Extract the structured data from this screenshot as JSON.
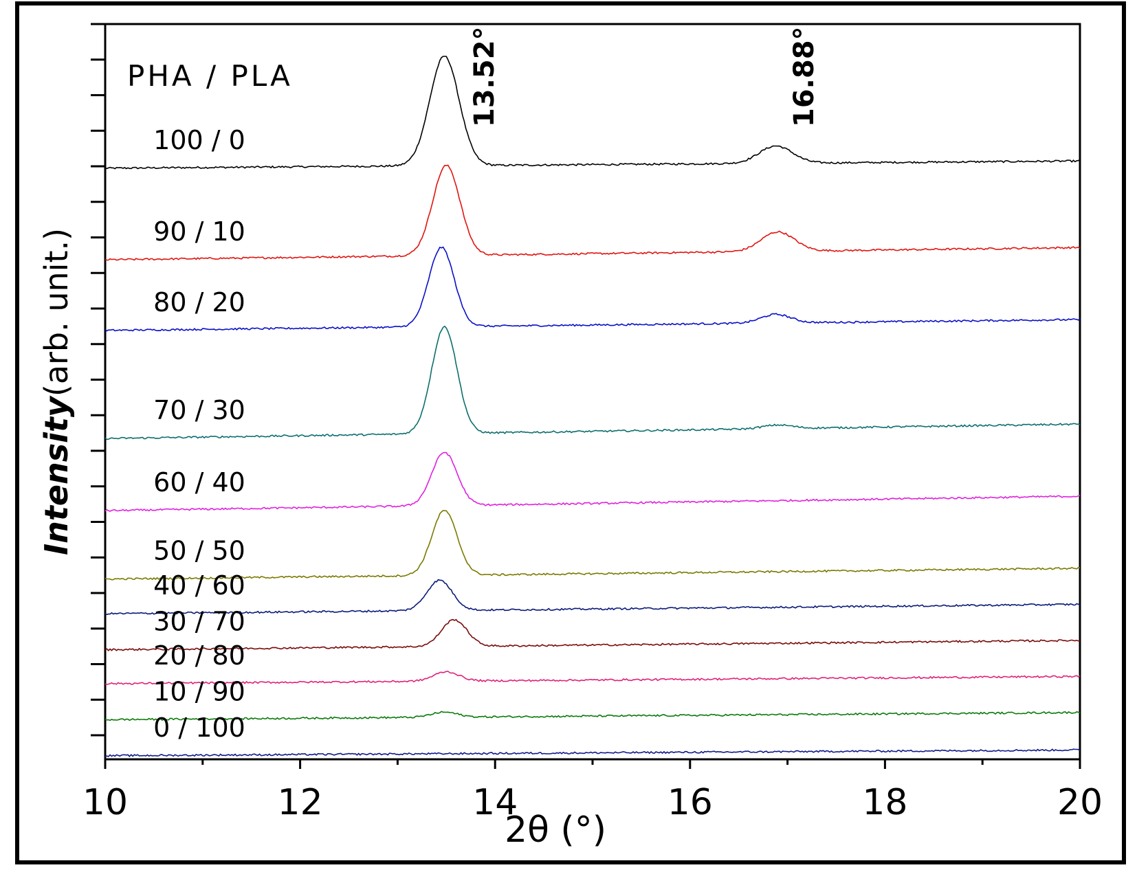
{
  "chart_data": {
    "type": "line",
    "title": "",
    "xlabel": "2θ (°)",
    "ylabel": {
      "italic": "Intensity",
      "rest": "(arb. unit.)"
    },
    "xlim": [
      10,
      20
    ],
    "x_ticks": [
      10,
      12,
      14,
      16,
      18,
      20
    ],
    "ylim": [
      0,
      10.2
    ],
    "y_tick_labels": false,
    "grid": false,
    "legend": "none (series labeled inline on the left)",
    "legend_title": "PHA / PLA",
    "annotations": [
      {
        "text": "13.52°",
        "x": 13.52
      },
      {
        "text": "16.88°",
        "x": 16.88
      }
    ],
    "series": [
      {
        "name": "100 / 0",
        "color": "#000000",
        "baseline": 8.2,
        "baseline_end": 8.3,
        "peaks": [
          {
            "x": 13.48,
            "h": 1.52,
            "w": 0.15
          },
          {
            "x": 16.88,
            "h": 0.24,
            "w": 0.17
          }
        ]
      },
      {
        "name": "90 / 10",
        "color": "#e0140f",
        "baseline": 6.93,
        "baseline_end": 7.1,
        "peaks": [
          {
            "x": 13.5,
            "h": 1.25,
            "w": 0.14
          },
          {
            "x": 16.9,
            "h": 0.27,
            "w": 0.17
          }
        ]
      },
      {
        "name": "80 / 20",
        "color": "#0a0fc8",
        "baseline": 5.95,
        "baseline_end": 6.1,
        "peaks": [
          {
            "x": 13.45,
            "h": 1.1,
            "w": 0.13
          },
          {
            "x": 16.88,
            "h": 0.12,
            "w": 0.15
          }
        ]
      },
      {
        "name": "70 / 30",
        "color": "#0d6e6e",
        "baseline": 4.45,
        "baseline_end": 4.65,
        "peaks": [
          {
            "x": 13.48,
            "h": 1.48,
            "w": 0.13
          },
          {
            "x": 16.9,
            "h": 0.05,
            "w": 0.15
          }
        ]
      },
      {
        "name": "60 / 40",
        "color": "#e020e0",
        "baseline": 3.45,
        "baseline_end": 3.65,
        "peaks": [
          {
            "x": 13.48,
            "h": 0.74,
            "w": 0.13
          }
        ]
      },
      {
        "name": "50 / 50",
        "color": "#7a7a00",
        "baseline": 2.5,
        "baseline_end": 2.65,
        "peaks": [
          {
            "x": 13.48,
            "h": 0.9,
            "w": 0.13
          }
        ]
      },
      {
        "name": "40 / 60",
        "color": "#0a1a7a",
        "baseline": 2.02,
        "baseline_end": 2.15,
        "peaks": [
          {
            "x": 13.43,
            "h": 0.42,
            "w": 0.13
          }
        ]
      },
      {
        "name": "30 / 70",
        "color": "#7a0a0a",
        "baseline": 1.52,
        "baseline_end": 1.65,
        "peaks": [
          {
            "x": 13.58,
            "h": 0.37,
            "w": 0.13
          }
        ]
      },
      {
        "name": "20 / 80",
        "color": "#e0207a",
        "baseline": 1.05,
        "baseline_end": 1.15,
        "peaks": [
          {
            "x": 13.5,
            "h": 0.13,
            "w": 0.13
          }
        ]
      },
      {
        "name": "10 / 90",
        "color": "#0a7a0a",
        "baseline": 0.55,
        "baseline_end": 0.65,
        "peaks": [
          {
            "x": 13.48,
            "h": 0.07,
            "w": 0.13
          }
        ]
      },
      {
        "name": "0 / 100",
        "color": "#101a8a",
        "baseline": 0.05,
        "baseline_end": 0.13,
        "peaks": []
      }
    ]
  }
}
